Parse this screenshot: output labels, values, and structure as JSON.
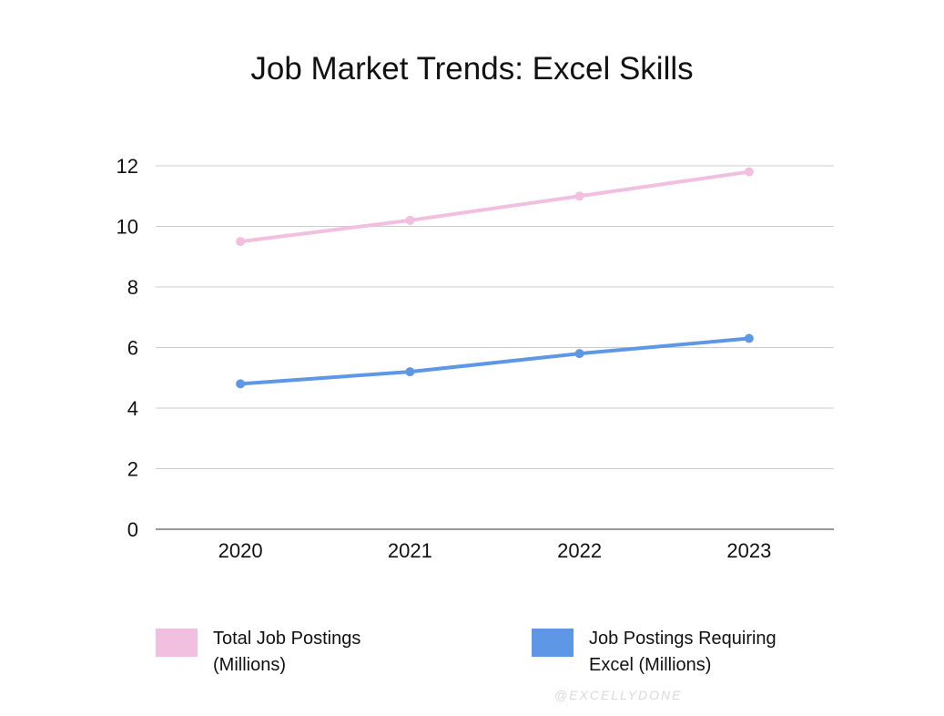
{
  "chart_data": {
    "type": "line",
    "title": "Job Market Trends: Excel Skills",
    "xlabel": "",
    "ylabel": "",
    "categories": [
      "2020",
      "2021",
      "2022",
      "2023"
    ],
    "ylim": [
      0,
      12
    ],
    "yticks": [
      "0",
      "2",
      "4",
      "6",
      "8",
      "10",
      "12"
    ],
    "grid": true,
    "legend_position": "bottom",
    "series": [
      {
        "name": "Total Job Postings (Millions)",
        "values": [
          9.5,
          10.2,
          11.0,
          11.8
        ],
        "color": "#f1bfe0"
      },
      {
        "name": "Job Postings Requiring Excel (Millions)",
        "values": [
          4.8,
          5.2,
          5.8,
          6.3
        ],
        "color": "#5e97e6"
      }
    ]
  },
  "watermark": "@EXCELLYDONE",
  "colors": {
    "gridline": "#cccccc",
    "baseline": "#333333"
  }
}
